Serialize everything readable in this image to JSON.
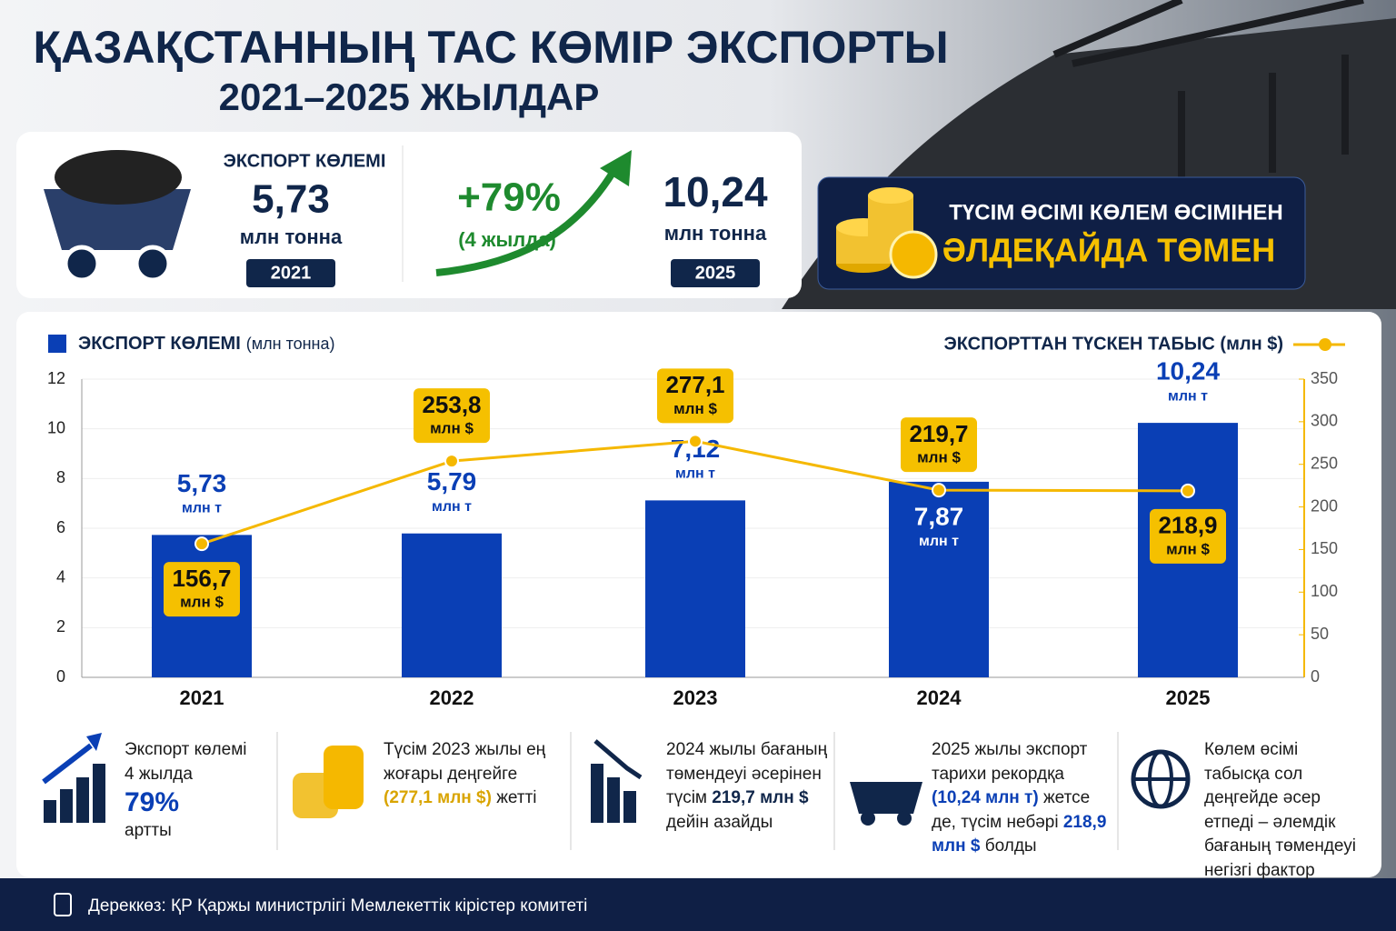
{
  "header": {
    "title": "ҚАЗАҚСТАННЫҢ ТАС КӨМІР ЭКСПОРТЫ",
    "subtitle": "2021–2025 ЖЫЛДАР"
  },
  "stats": {
    "label": "ЭКСПОРТ КӨЛЕМІ",
    "start_value": "5,73",
    "start_unit": "млн тонна",
    "start_year": "2021",
    "growth": "+79%",
    "growth_note": "(4 жылда)",
    "end_value": "10,24",
    "end_unit": "млн тонна",
    "end_year": "2025"
  },
  "banner": {
    "line1": "ТҮСІМ ӨСІМІ КӨЛЕМ ӨСІМІНЕН",
    "line2": "ӘЛДЕҚАЙДА ТӨМЕН"
  },
  "chart_data": {
    "type": "bar",
    "categories": [
      "2021",
      "2022",
      "2023",
      "2024",
      "2025"
    ],
    "series": [
      {
        "name": "ЭКСПОРТ КӨЛЕМІ",
        "name_note": "(млн тонна)",
        "type": "bar",
        "color": "#0a3fb5",
        "values": [
          5.73,
          5.79,
          7.12,
          7.87,
          10.24
        ],
        "value_labels": [
          "5,73",
          "5,79",
          "7,12",
          "7,87",
          "10,24"
        ],
        "unit": "млн т"
      },
      {
        "name": "ЭКСПОРТТАН ТҮСКЕН ТАБЫС (млн $)",
        "type": "line",
        "axis": "y2",
        "color": "#f5b800",
        "values": [
          156.7,
          253.8,
          277.1,
          219.7,
          218.9
        ],
        "value_labels": [
          "156,7",
          "253,8",
          "277,1",
          "219,7",
          "218,9"
        ],
        "unit": "млн $"
      }
    ],
    "ylim": [
      0,
      12
    ],
    "yticks": [
      0,
      2,
      4,
      6,
      8,
      10,
      12
    ],
    "y2lim": [
      0,
      350
    ],
    "y2ticks": [
      0,
      50,
      100,
      150,
      200,
      250,
      300,
      350
    ],
    "grid": true
  },
  "notes": [
    {
      "parts": [
        {
          "text": "Экспорт көлемі 4 жылда"
        },
        {
          "text": "79%",
          "em": "big"
        },
        {
          "text": "артты"
        }
      ]
    },
    {
      "parts": [
        {
          "text": "Түсім 2023 жылы ең жоғары деңгейге "
        },
        {
          "text": "(277,1 млн $)",
          "em": "gold"
        },
        {
          "text": " жетті"
        }
      ]
    },
    {
      "parts": [
        {
          "text": "2024 жылы бағаның төмендеуі әсерінен түсім "
        },
        {
          "text": "219,7 млн $",
          "em": "navy"
        },
        {
          "text": " дейін азайды"
        }
      ]
    },
    {
      "parts": [
        {
          "text": "2025 жылы экспорт тарихи рекордқа "
        },
        {
          "text": "(10,24 млн т)",
          "em": "blue"
        },
        {
          "text": " жетсе де, түсім небәрі "
        },
        {
          "text": "218,9 млн $",
          "em": "blue"
        },
        {
          "text": " болды"
        }
      ]
    },
    {
      "parts": [
        {
          "text": "Көлем өсімі табысқа сол деңгейде әсер етпеді – әлемдік бағаның төмендеуі негізгі фактор"
        }
      ]
    }
  ],
  "footer": {
    "source": "Дереккөз: ҚР Қаржы министрлігі Мемлекеттік кірістер комитеті"
  }
}
